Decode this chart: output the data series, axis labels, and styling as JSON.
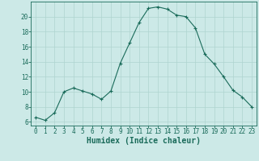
{
  "x": [
    0,
    1,
    2,
    3,
    4,
    5,
    6,
    7,
    8,
    9,
    10,
    11,
    12,
    13,
    14,
    15,
    16,
    17,
    18,
    19,
    20,
    21,
    22,
    23
  ],
  "y": [
    6.6,
    6.2,
    7.2,
    10.0,
    10.5,
    10.1,
    9.7,
    9.0,
    10.1,
    13.8,
    16.5,
    19.2,
    21.1,
    21.3,
    21.0,
    20.2,
    20.0,
    18.5,
    15.0,
    13.7,
    12.0,
    10.2,
    9.3,
    8.0
  ],
  "xlabel": "Humidex (Indice chaleur)",
  "ylim": [
    5.5,
    22.0
  ],
  "xlim": [
    -0.5,
    23.5
  ],
  "yticks": [
    6,
    8,
    10,
    12,
    14,
    16,
    18,
    20
  ],
  "xticks": [
    0,
    1,
    2,
    3,
    4,
    5,
    6,
    7,
    8,
    9,
    10,
    11,
    12,
    13,
    14,
    15,
    16,
    17,
    18,
    19,
    20,
    21,
    22,
    23
  ],
  "line_color": "#1a6b5a",
  "marker": "+",
  "bg_color": "#cce9e7",
  "grid_color": "#afd4d0",
  "tick_color": "#1a6b5a",
  "xlabel_fontsize": 7,
  "tick_fontsize": 5.5
}
